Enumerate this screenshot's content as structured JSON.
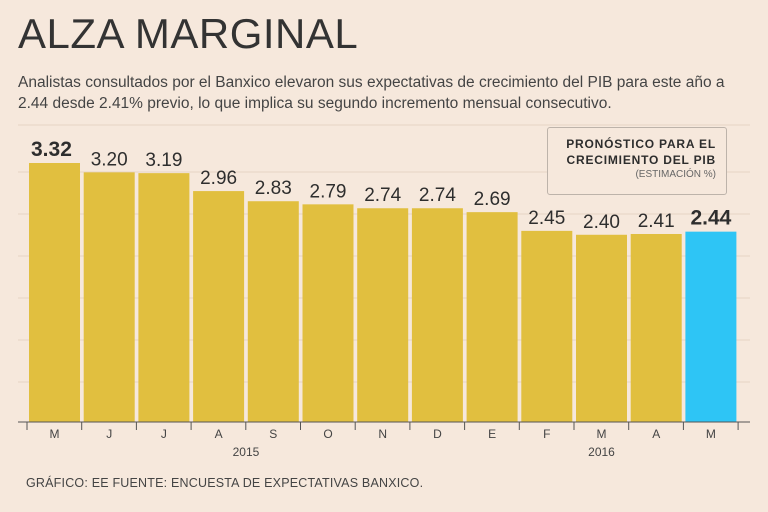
{
  "header": {
    "title": "ALZA MARGINAL",
    "subtitle": "Analistas consultados por el Banxico elevaron sus expectativas de crecimiento del PIB para este año a 2.44 desde 2.41% previo, lo que implica su segundo incremento mensual consecutivo."
  },
  "legend": {
    "line1": "PRONÓSTICO PARA EL",
    "line2": "CRECIMIENTO DEL PIB",
    "line3": "(ESTIMACIÓN %)"
  },
  "footer": {
    "text": "GRÁFICO: EE  FUENTE: ENCUESTA DE EXPECTATIVAS BANXICO."
  },
  "colors": {
    "bar": "#e1bf3f",
    "highlight": "#2ec5f5",
    "gridline": "#e6d3c4",
    "axis": "#555555"
  },
  "chart_data": {
    "type": "bar",
    "title": "PRONÓSTICO PARA EL CRECIMIENTO DEL PIB",
    "subtitle": "(ESTIMACIÓN %)",
    "categories": [
      "M",
      "J",
      "J",
      "A",
      "S",
      "O",
      "N",
      "D",
      "E",
      "F",
      "M",
      "A",
      "M"
    ],
    "values": [
      3.32,
      3.2,
      3.19,
      2.96,
      2.83,
      2.79,
      2.74,
      2.74,
      2.69,
      2.45,
      2.4,
      2.41,
      2.44
    ],
    "value_labels": [
      "3.32",
      "3.20",
      "3.19",
      "2.96",
      "2.83",
      "2.79",
      "2.74",
      "2.74",
      "2.69",
      "2.45",
      "2.40",
      "2.41",
      "2.44"
    ],
    "bold_indices": [
      0,
      12
    ],
    "highlight_index": 12,
    "year_groups": [
      {
        "label": "2015",
        "start": 0,
        "end": 7
      },
      {
        "label": "2016",
        "start": 8,
        "end": 12
      }
    ],
    "ylim": [
      0,
      3.32
    ],
    "grid": true,
    "xlabel": "",
    "ylabel": ""
  }
}
